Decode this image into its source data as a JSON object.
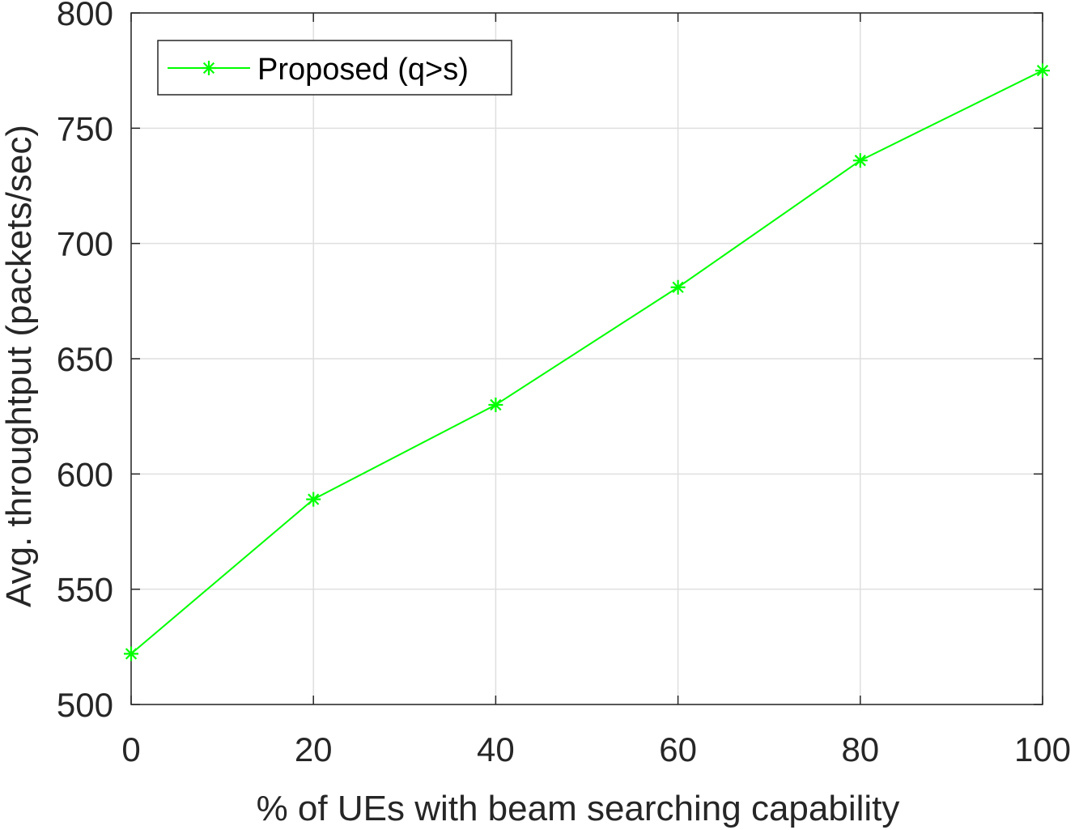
{
  "chart_data": {
    "type": "line",
    "title": "",
    "xlabel": "% of UEs with beam searching capability",
    "ylabel": "Avg. throughtput (packets/sec)",
    "xlim": [
      0,
      100
    ],
    "ylim": [
      500,
      800
    ],
    "xticks": [
      "0",
      "20",
      "40",
      "60",
      "80",
      "100"
    ],
    "yticks": [
      "500",
      "550",
      "600",
      "650",
      "700",
      "750",
      "800"
    ],
    "grid": true,
    "legend_position": "top-left",
    "series": [
      {
        "name": "Proposed (q>s)",
        "color": "#00ff00",
        "marker": "asterisk",
        "x": [
          0,
          20,
          40,
          60,
          80,
          100
        ],
        "y": [
          522,
          589,
          630,
          681,
          736,
          775
        ]
      }
    ]
  }
}
